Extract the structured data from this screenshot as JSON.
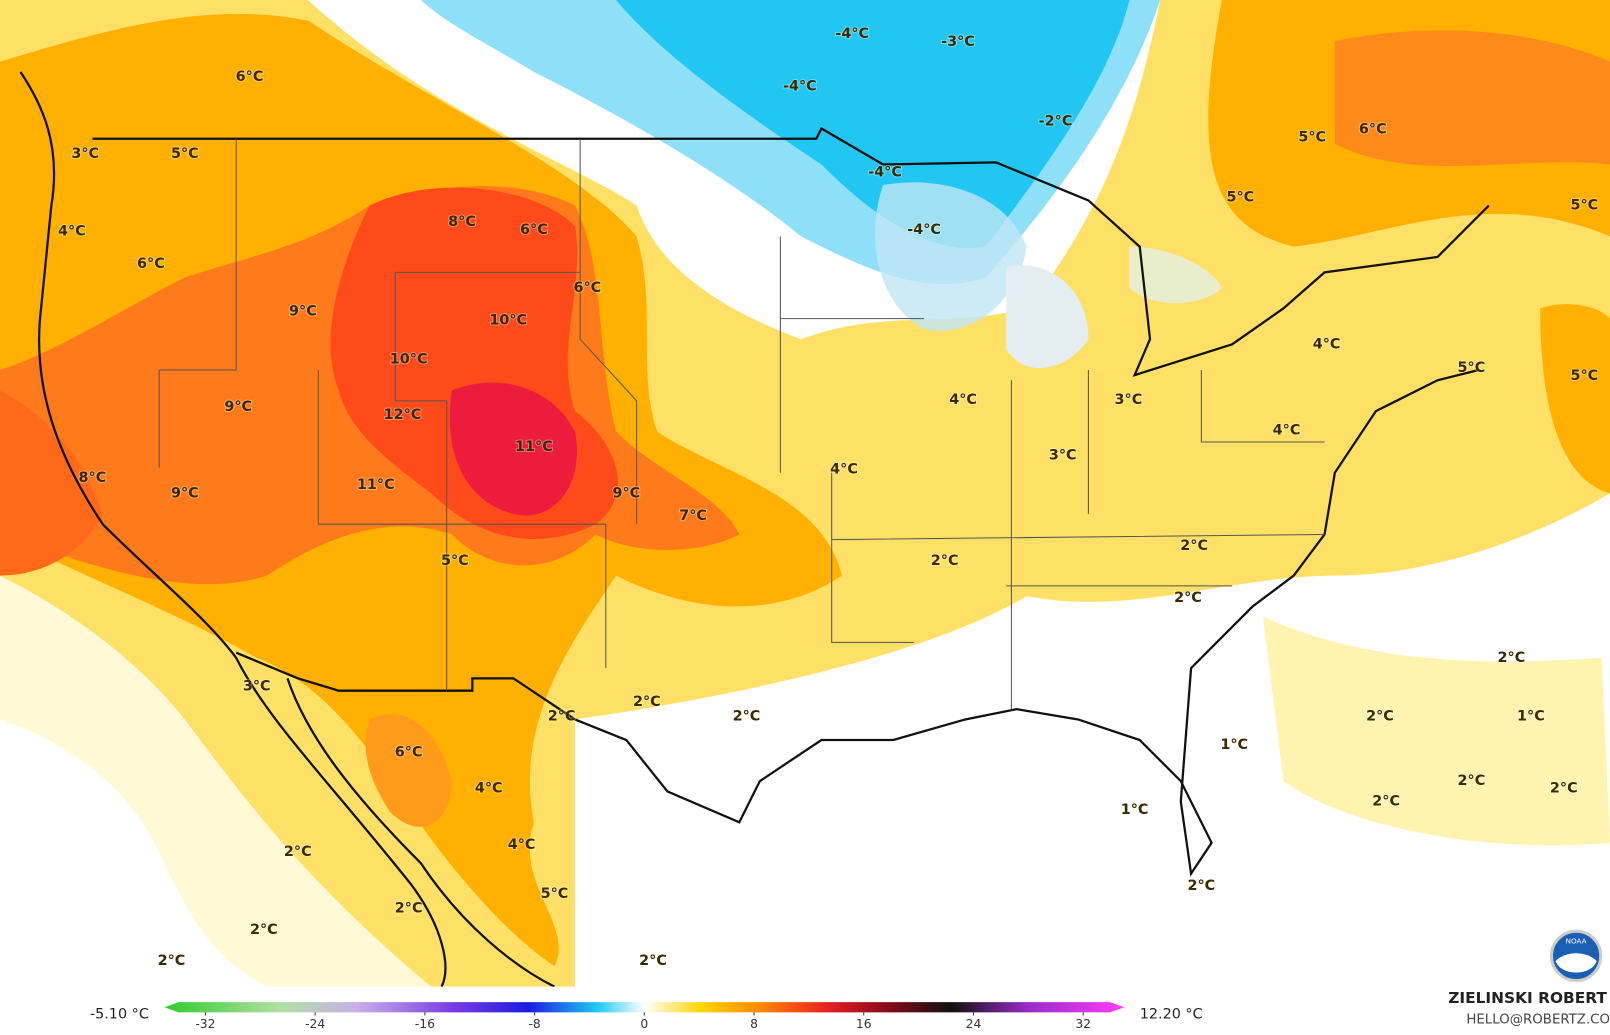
{
  "map": {
    "labels": [
      "6°C",
      "5°C",
      "3°C",
      "4°C",
      "6°C",
      "9°C",
      "8°C",
      "6°C",
      "6°C",
      "10°C",
      "10°C",
      "9°C",
      "12°C",
      "11°C",
      "11°C",
      "8°C",
      "9°C",
      "9°C",
      "7°C",
      "5°C",
      "-4°C",
      "-3°C",
      "-4°C",
      "-2°C",
      "-4°C",
      "-4°C",
      "5°C",
      "6°C",
      "5°C",
      "5°C",
      "4°C",
      "5°C",
      "5°C",
      "4°C",
      "3°C",
      "4°C",
      "4°C",
      "3°C",
      "2°C",
      "2°C",
      "2°C",
      "2°C",
      "2°C",
      "1°C",
      "1°C",
      "2°C",
      "2°C",
      "2°C",
      "1°C",
      "2°C",
      "3°C",
      "6°C",
      "2°C",
      "2°C",
      "2°C",
      "4°C",
      "4°C",
      "5°C",
      "2°C",
      "2°C",
      "2°C",
      "2°C",
      "2°C"
    ],
    "colorbar": {
      "min_label": "-5.10 °C",
      "max_label": "12.20 °C",
      "lim": [
        -35,
        35
      ],
      "ticks": [
        -32,
        -24,
        -16,
        -8,
        0,
        8,
        16,
        24,
        32
      ]
    },
    "credit": {
      "name": "ZIELINSKI ROBERT",
      "contact": "HELLO@ROBERTZ.CO"
    },
    "logo": "NOAA"
  }
}
